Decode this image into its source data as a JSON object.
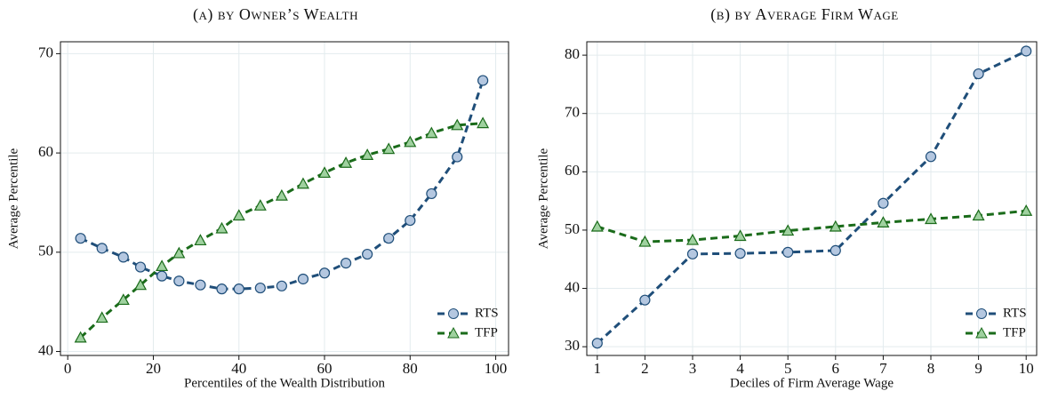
{
  "chart_data": [
    {
      "type": "line",
      "title": "(a) by Owner’s Wealth",
      "xlabel": "Percentiles of the Wealth Distribution",
      "ylabel": "Average Percentile",
      "x": [
        3,
        8,
        13,
        17,
        22,
        26,
        31,
        36,
        40,
        45,
        50,
        55,
        60,
        65,
        70,
        75,
        80,
        85,
        91,
        97
      ],
      "series": [
        {
          "name": "RTS",
          "color": "#1f4e79",
          "marker": "circle",
          "marker_color": "#b4c7e0",
          "values": [
            51.4,
            50.4,
            49.5,
            48.5,
            47.6,
            47.1,
            46.7,
            46.3,
            46.3,
            46.4,
            46.6,
            47.3,
            47.9,
            48.9,
            49.8,
            51.4,
            53.2,
            55.9,
            59.6,
            67.3
          ]
        },
        {
          "name": "TFP",
          "color": "#1a6b1a",
          "marker": "triangle",
          "marker_color": "#9fd19f",
          "values": [
            41.4,
            43.4,
            45.2,
            46.7,
            48.6,
            49.9,
            51.2,
            52.4,
            53.7,
            54.7,
            55.7,
            56.9,
            58.0,
            59.0,
            59.8,
            60.4,
            61.1,
            62.0,
            62.8,
            63.0
          ]
        }
      ],
      "xlim": [
        -1.7,
        103
      ],
      "xticks": [
        0,
        20,
        40,
        60,
        80,
        100
      ],
      "ylim": [
        39.6,
        71.2
      ],
      "yticks": [
        40,
        50,
        60,
        70
      ],
      "grid": true,
      "legend": "lower right"
    },
    {
      "type": "line",
      "title": "(b) by Average Firm Wage",
      "xlabel": "Deciles of Firm Average Wage",
      "ylabel": "Average Percentile",
      "x": [
        1,
        2,
        3,
        4,
        5,
        6,
        7,
        8,
        9,
        10
      ],
      "series": [
        {
          "name": "RTS",
          "color": "#1f4e79",
          "marker": "circle",
          "marker_color": "#b4c7e0",
          "values": [
            30.6,
            38.0,
            45.9,
            46.0,
            46.2,
            46.5,
            54.6,
            62.6,
            76.8,
            80.7
          ]
        },
        {
          "name": "TFP",
          "color": "#1a6b1a",
          "marker": "triangle",
          "marker_color": "#9fd19f",
          "values": [
            50.6,
            48.0,
            48.3,
            49.0,
            49.9,
            50.6,
            51.3,
            51.9,
            52.5,
            53.3
          ]
        }
      ],
      "xlim": [
        0.78,
        10.22
      ],
      "xticks": [
        1,
        2,
        3,
        4,
        5,
        6,
        7,
        8,
        9,
        10
      ],
      "ylim": [
        28.5,
        82.3
      ],
      "yticks": [
        30,
        40,
        50,
        60,
        70,
        80
      ],
      "grid": true,
      "legend": "lower right"
    }
  ]
}
